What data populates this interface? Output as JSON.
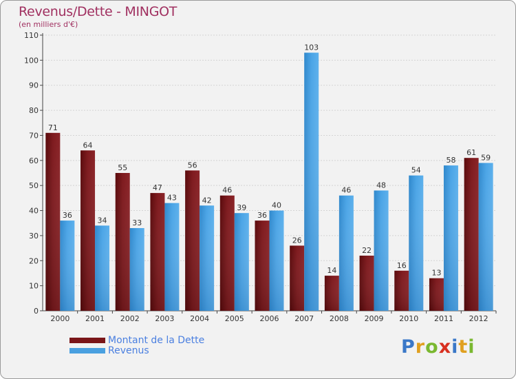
{
  "chart_data": {
    "type": "bar",
    "title": "Revenus/Dette - MINGOT",
    "subtitle": "(en milliers d'€)",
    "categories": [
      "2000",
      "2001",
      "2002",
      "2003",
      "2004",
      "2005",
      "2006",
      "2007",
      "2008",
      "2009",
      "2010",
      "2011",
      "2012"
    ],
    "series": [
      {
        "name": "Montant de la Dette",
        "color": "#7a1518",
        "values": [
          71,
          64,
          55,
          47,
          56,
          46,
          36,
          26,
          14,
          22,
          16,
          13,
          61
        ]
      },
      {
        "name": "Revenus",
        "color": "#4aa0e0",
        "values": [
          36,
          34,
          33,
          43,
          42,
          39,
          40,
          103,
          46,
          48,
          54,
          58,
          59
        ]
      }
    ],
    "ylim": [
      0,
      110
    ],
    "yticks": [
      0,
      10,
      20,
      30,
      40,
      50,
      60,
      70,
      80,
      90,
      100,
      110
    ],
    "grid": true,
    "xlabel": "",
    "ylabel": ""
  },
  "logo": {
    "letters": [
      {
        "ch": "P",
        "color": "#3a78c8"
      },
      {
        "ch": "r",
        "color": "#e0a020"
      },
      {
        "ch": "o",
        "color": "#7ab830"
      },
      {
        "ch": "x",
        "color": "#d83020"
      },
      {
        "ch": "i",
        "color": "#3a78c8"
      },
      {
        "ch": "t",
        "color": "#e0a020"
      },
      {
        "ch": "i",
        "color": "#7ab830"
      }
    ]
  }
}
